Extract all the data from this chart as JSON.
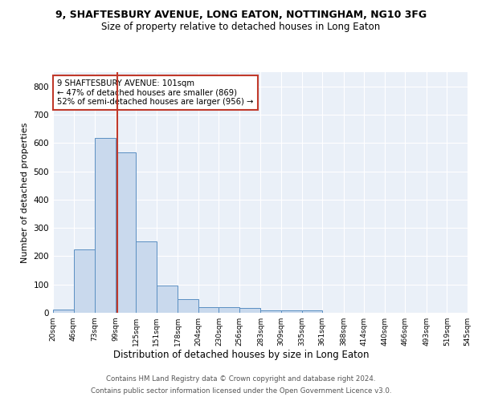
{
  "title1": "9, SHAFTESBURY AVENUE, LONG EATON, NOTTINGHAM, NG10 3FG",
  "title2": "Size of property relative to detached houses in Long Eaton",
  "xlabel": "Distribution of detached houses by size in Long Eaton",
  "ylabel": "Number of detached properties",
  "bar_edges": [
    20,
    46,
    73,
    99,
    125,
    151,
    178,
    204,
    230,
    256,
    283,
    309,
    335,
    361,
    388,
    414,
    440,
    466,
    493,
    519,
    545
  ],
  "bar_heights": [
    10,
    225,
    617,
    567,
    253,
    95,
    47,
    20,
    20,
    18,
    8,
    8,
    8,
    0,
    0,
    0,
    0,
    0,
    0,
    0
  ],
  "bar_color": "#c9d9ed",
  "bar_edge_color": "#5a8fc2",
  "ylim": [
    0,
    850
  ],
  "yticks": [
    0,
    100,
    200,
    300,
    400,
    500,
    600,
    700,
    800
  ],
  "property_size": 101,
  "vline_color": "#c0392b",
  "annotation_line1": "9 SHAFTESBURY AVENUE: 101sqm",
  "annotation_line2": "← 47% of detached houses are smaller (869)",
  "annotation_line3": "52% of semi-detached houses are larger (956) →",
  "bg_color": "#eaf0f8",
  "footer1": "Contains HM Land Registry data © Crown copyright and database right 2024.",
  "footer2": "Contains public sector information licensed under the Open Government Licence v3.0.",
  "tick_labels": [
    "20sqm",
    "46sqm",
    "73sqm",
    "99sqm",
    "125sqm",
    "151sqm",
    "178sqm",
    "204sqm",
    "230sqm",
    "256sqm",
    "283sqm",
    "309sqm",
    "335sqm",
    "361sqm",
    "388sqm",
    "414sqm",
    "440sqm",
    "466sqm",
    "493sqm",
    "519sqm",
    "545sqm"
  ]
}
